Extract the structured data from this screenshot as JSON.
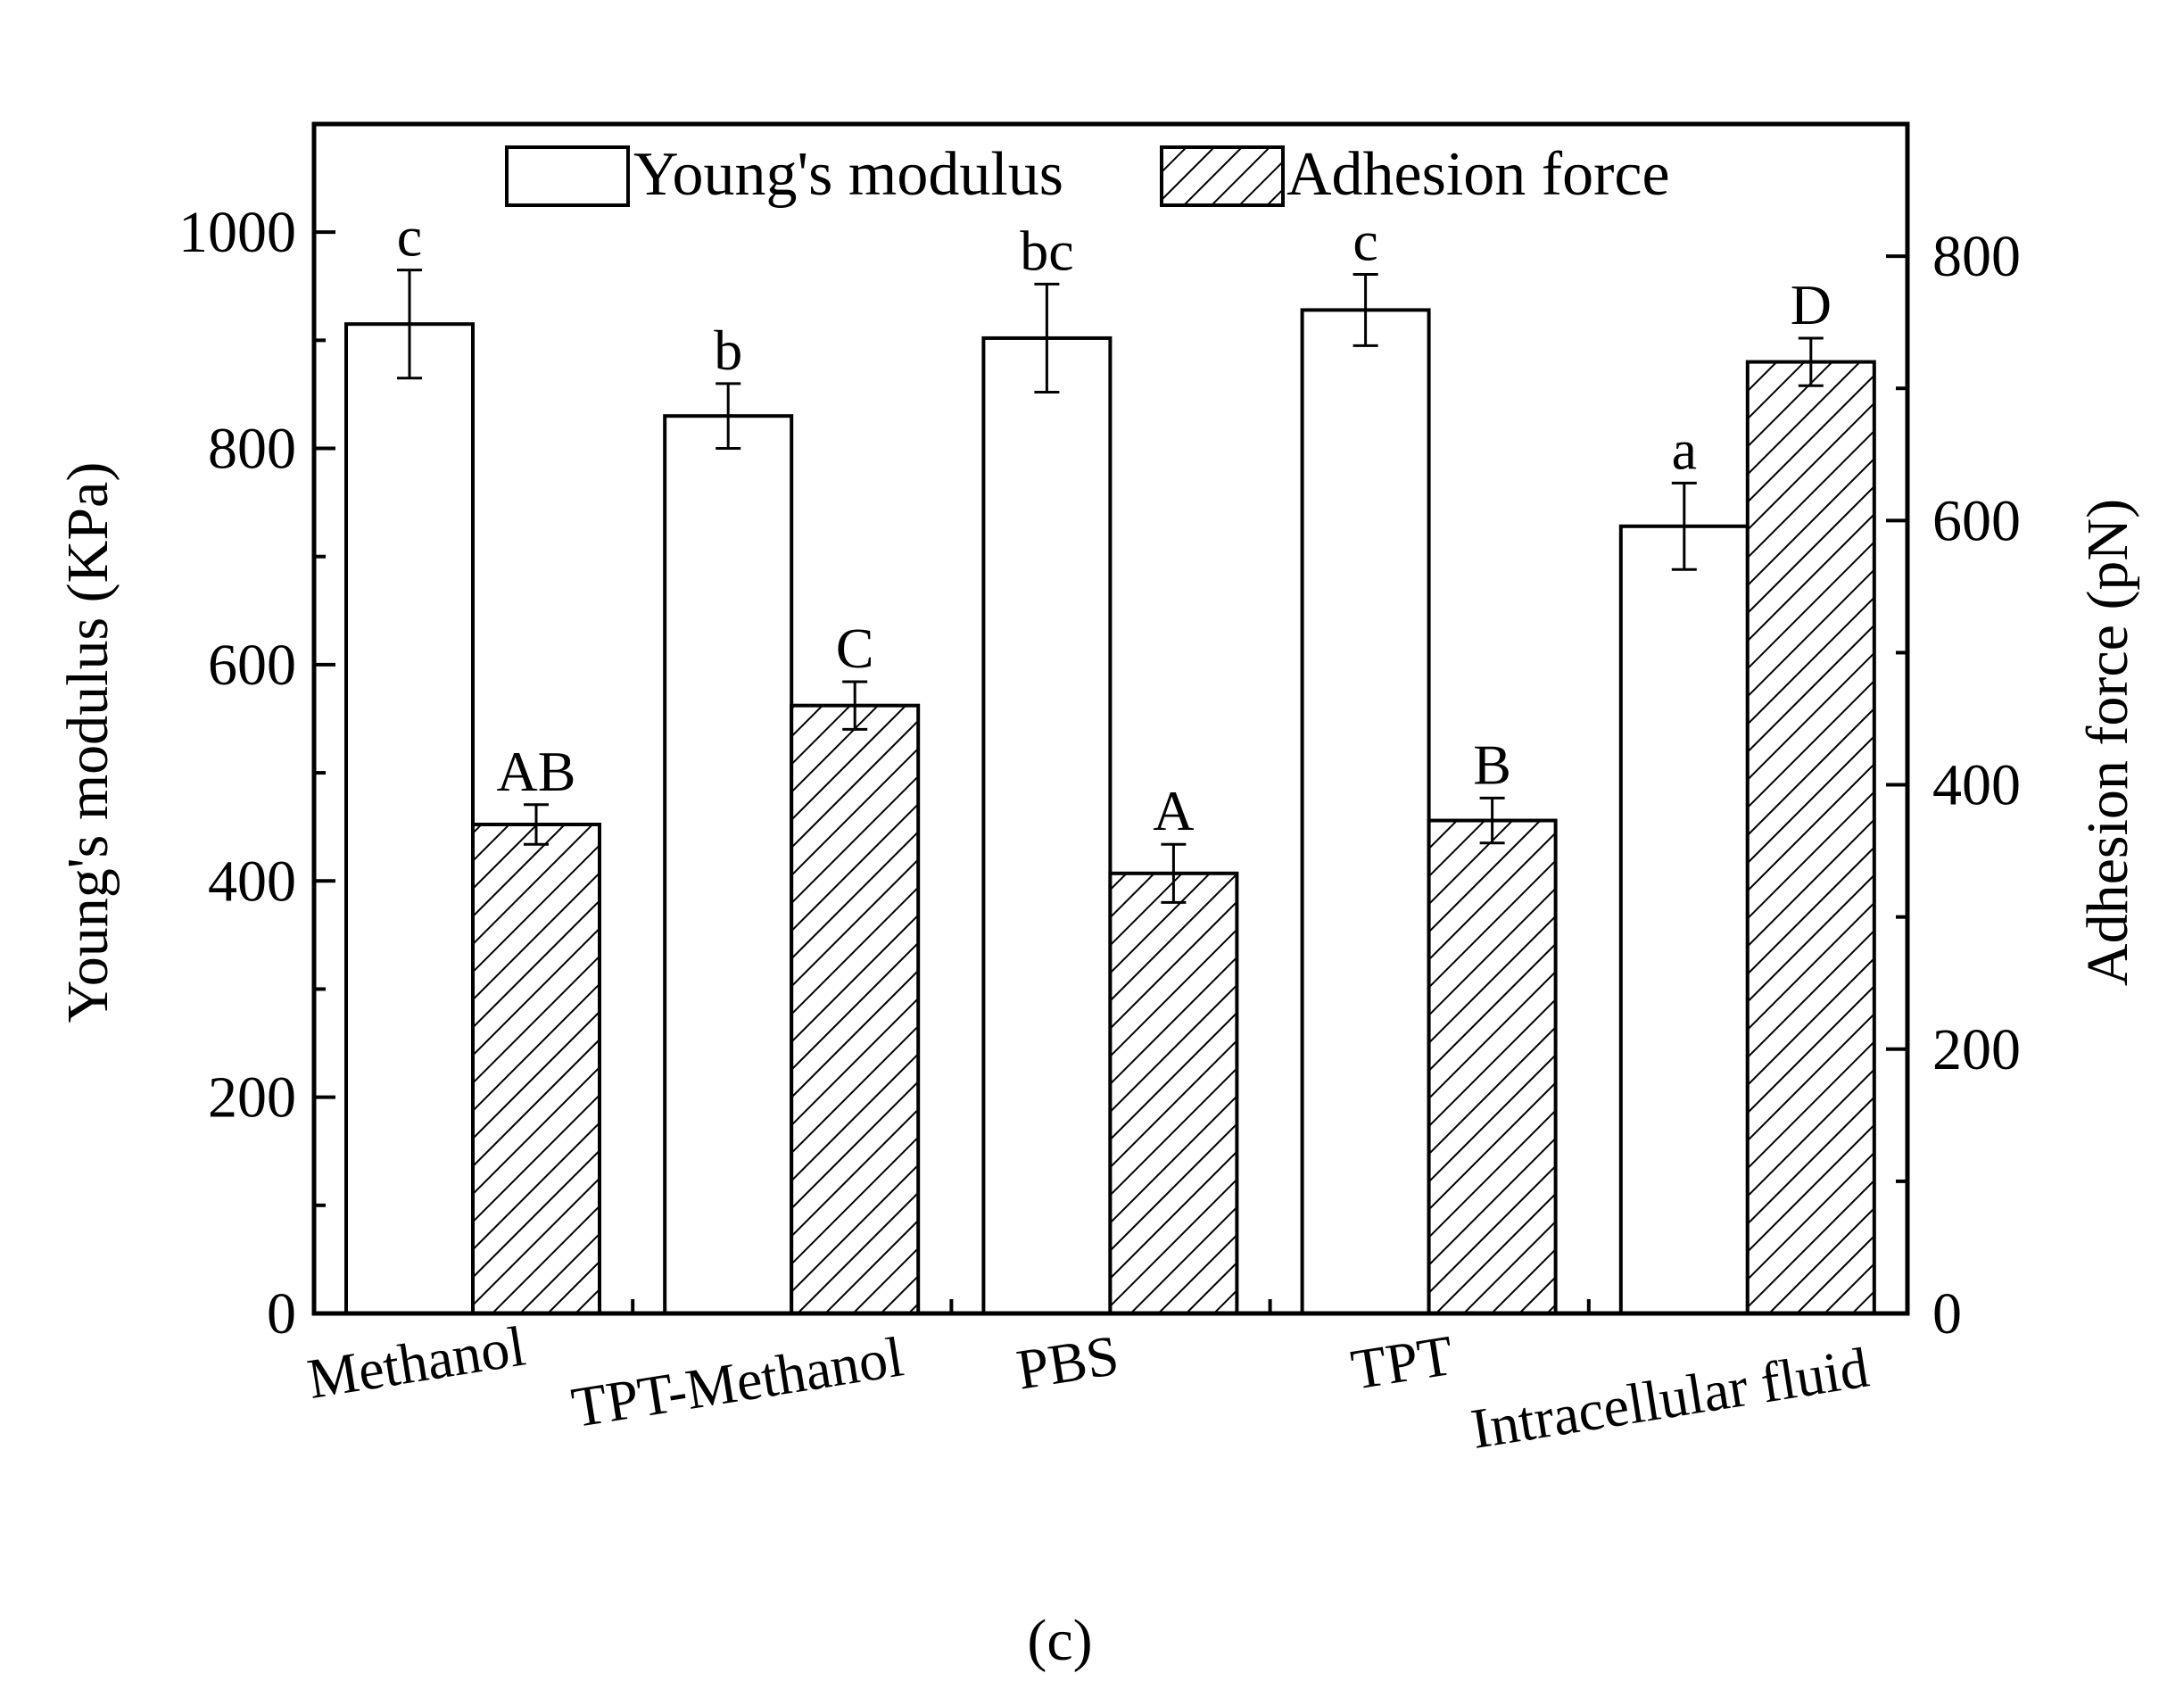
{
  "chart_data": {
    "type": "bar",
    "categories": [
      "Methanol",
      "TPT-Methanol",
      "PBS",
      "TPT",
      "Intracellular fluid"
    ],
    "series": [
      {
        "name": "Young's modulus",
        "axis": "left",
        "pattern": "none",
        "values": [
          915,
          830,
          902,
          928,
          728
        ],
        "errors": [
          50,
          30,
          50,
          33,
          40
        ],
        "significance": [
          "c",
          "b",
          "bc",
          "c",
          "a"
        ]
      },
      {
        "name": "Adhesion force",
        "axis": "right",
        "pattern": "hatch",
        "values": [
          370,
          460,
          333,
          373,
          720
        ],
        "errors": [
          15,
          18,
          22,
          17,
          18
        ],
        "significance": [
          "AB",
          "C",
          "A",
          "B",
          "D"
        ]
      }
    ],
    "left_axis": {
      "label": "Young's modulus (KPa)",
      "ylim": [
        0,
        1100
      ],
      "ticks": [
        0,
        200,
        400,
        600,
        800,
        1000
      ],
      "minor_ticks": [
        100,
        300,
        500,
        700,
        900
      ]
    },
    "right_axis": {
      "label": "Adhesion force (pN)",
      "ylim": [
        0,
        900
      ],
      "ticks": [
        0,
        200,
        400,
        600,
        800
      ],
      "minor_ticks": [
        100,
        300,
        500,
        700
      ]
    },
    "legend_position": "top-center",
    "grid": false,
    "caption": "(c)"
  }
}
